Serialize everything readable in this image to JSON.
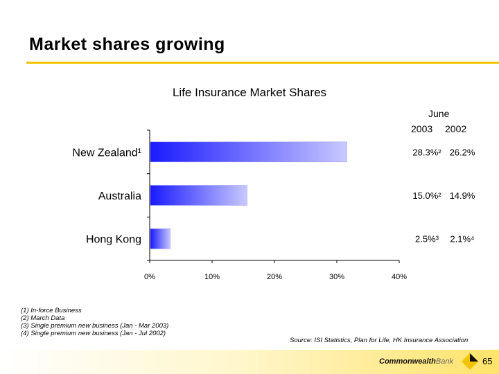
{
  "slide": {
    "title": "Market shares growing",
    "page_number": "65",
    "accent_color": "#f2c500"
  },
  "chart_data": {
    "type": "bar",
    "orientation": "horizontal",
    "title": "Life Insurance Market Shares",
    "categories": [
      "New Zealand¹",
      "Australia",
      "Hong Kong"
    ],
    "values": [
      31.5,
      15.5,
      3.2
    ],
    "xlim": [
      0,
      40
    ],
    "x_ticks": [
      "0%",
      "10%",
      "20%",
      "30%",
      "40%"
    ],
    "bar_color": "#3333ff",
    "column_header": {
      "top": "June",
      "year1": "2003",
      "year2": "2002"
    },
    "table": [
      {
        "y2003": "28.3%²",
        "y2002": "26.2%"
      },
      {
        "y2003": "15.0%²",
        "y2002": "14.9%"
      },
      {
        "y2003": "2.5%³",
        "y2002": "2.1%⁴"
      }
    ]
  },
  "footnotes": [
    "(1) In-force Business",
    "(2) March Data",
    "(3) Single premium new business (Jan - Mar 2003)",
    "(4) Single premium new business (Jan - Jul 2002)"
  ],
  "source": "Source: ISI Statistics, Plan for Life, HK Insurance Association",
  "brand": {
    "name": "Commonwealth",
    "suffix": "Bank",
    "logo_color": "#f2c500"
  }
}
